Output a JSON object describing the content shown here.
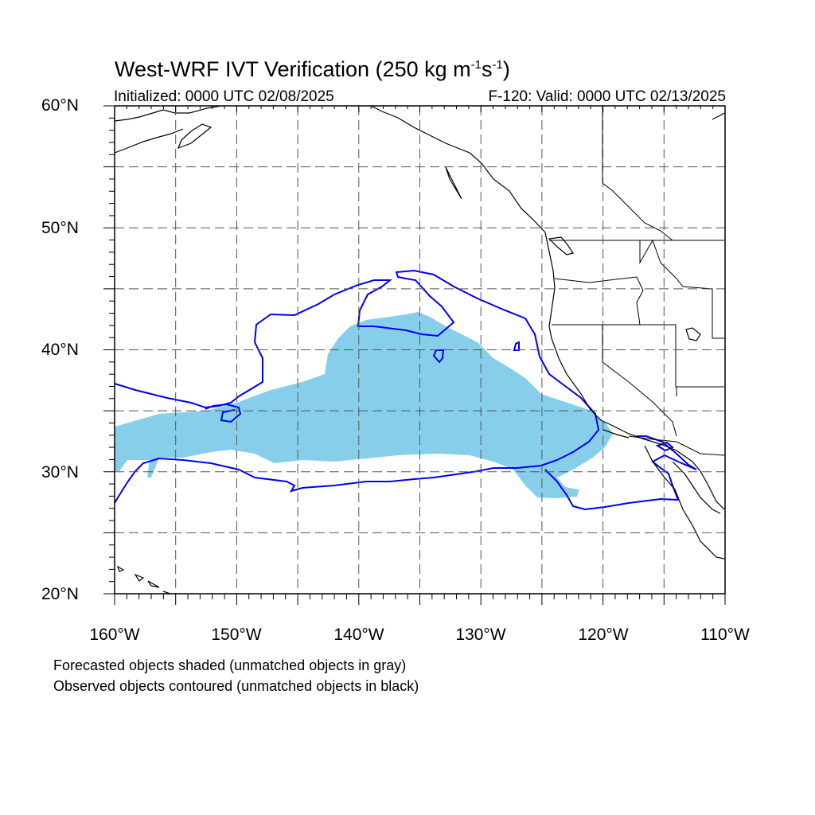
{
  "title": {
    "text": "West-WRF IVT Verification (250 kg m",
    "exp1": "-1",
    "mid": "s",
    "exp2": "-1",
    "end": ")"
  },
  "subtitle_left": "Initialized: 0000 UTC 02/08/2025",
  "subtitle_right": "F-120: Valid: 0000 UTC 02/13/2025",
  "y_ticks": [
    "60°N",
    "50°N",
    "40°N",
    "30°N",
    "20°N"
  ],
  "x_ticks": [
    "160°W",
    "150°W",
    "140°W",
    "130°W",
    "120°W",
    "110°W"
  ],
  "notes": [
    "Forecasted objects shaded (unmatched objects in gray)",
    "Observed objects contoured (unmatched objects in black)"
  ],
  "colors": {
    "forecast_fill": "#87ceeb",
    "observed_contour": "#0000ee",
    "coastline": "#000000",
    "grid": "#555555"
  },
  "map_extent": {
    "lon_min": -160,
    "lon_max": -110,
    "lat_min": 20,
    "lat_max": 60
  },
  "grid": {
    "lon_step": 5,
    "lat_step": 5,
    "style": "dashed"
  }
}
